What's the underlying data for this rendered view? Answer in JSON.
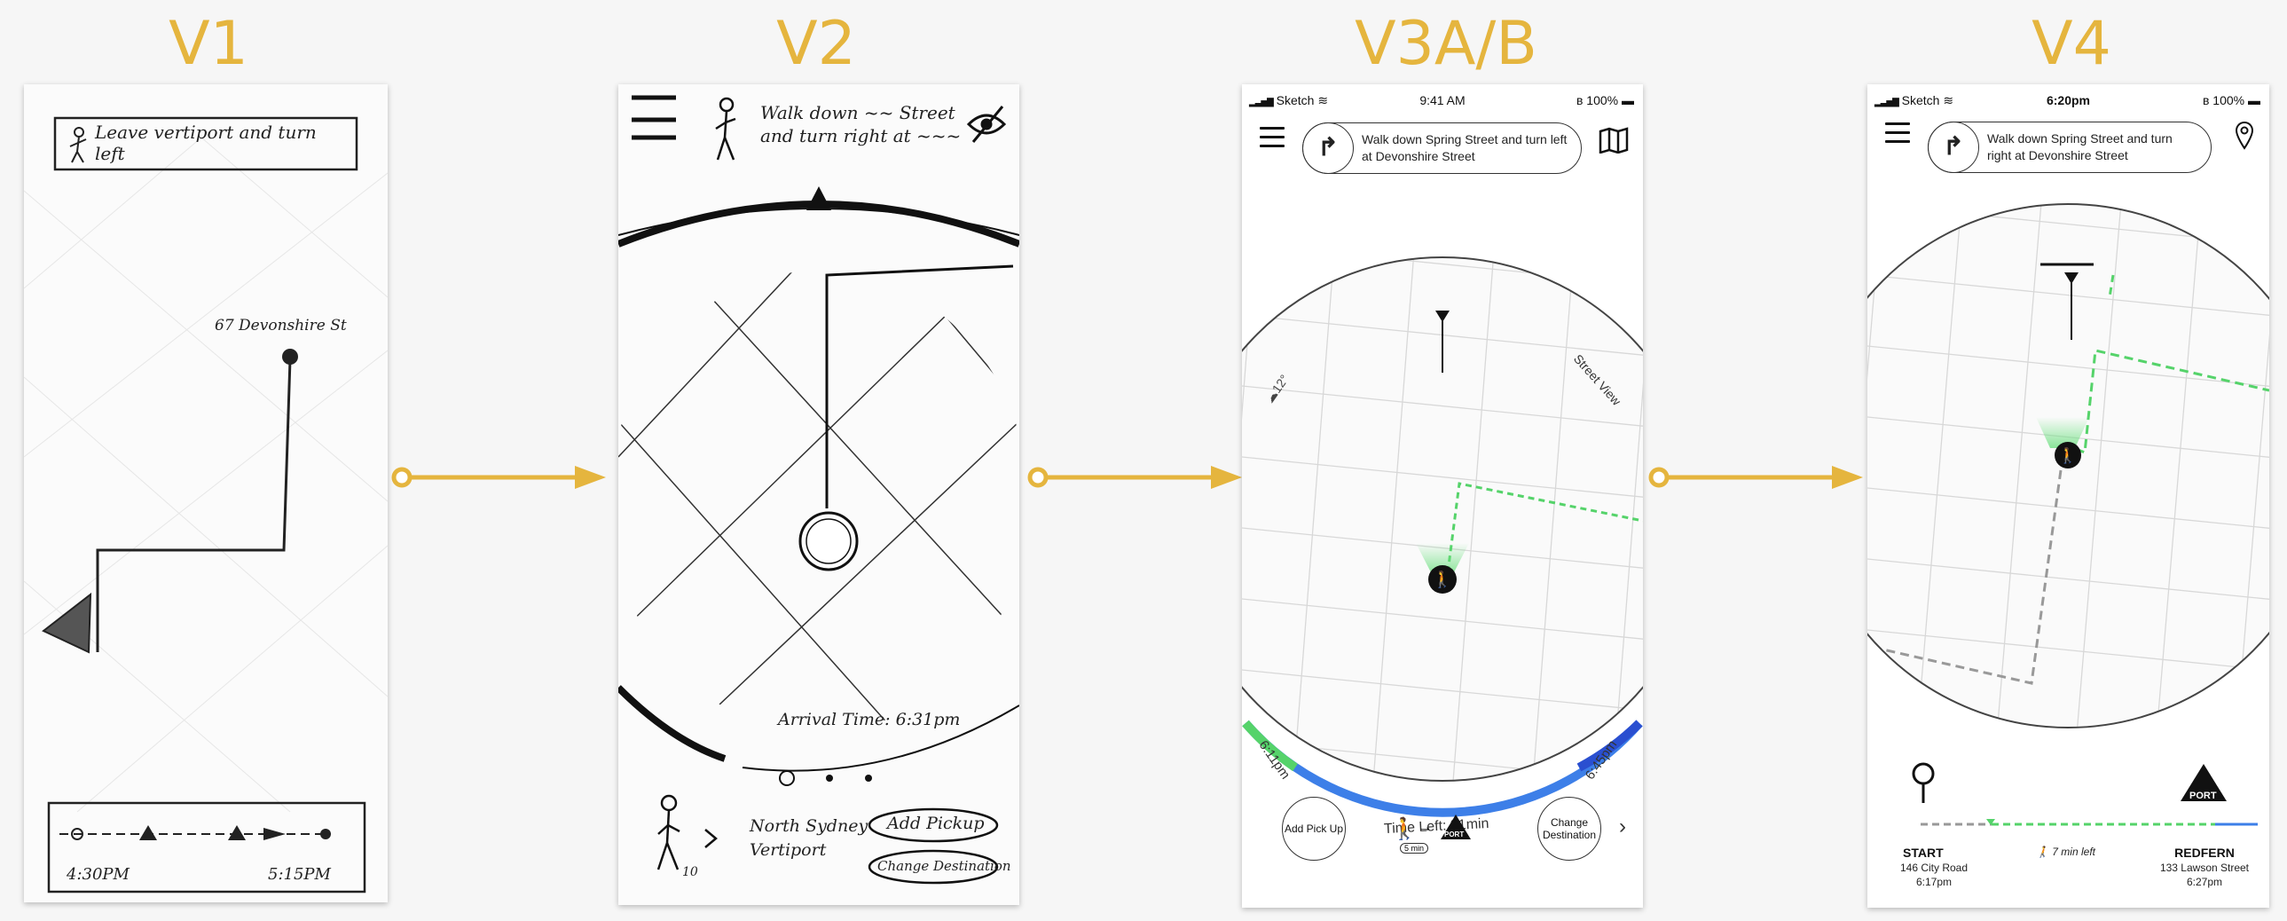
{
  "labels": {
    "v1": "V1",
    "v2": "V2",
    "v3": "V3A/B",
    "v4": "V4"
  },
  "colors": {
    "accent": "#e5b53e",
    "route_green": "#55d36a",
    "progress_blue": "#3d7fe8",
    "route_gray": "#999999"
  },
  "v1": {
    "instruction": "Leave vertiport and turn left",
    "destination": "67 Devonshire St",
    "start_time": "4:30PM",
    "end_time": "5:15PM"
  },
  "v2": {
    "instruction_line1": "Walk down ~~ Street",
    "instruction_line2": "and turn right at ~~~",
    "arrival": "Arrival Time: 6:31pm",
    "walker_number": "10",
    "location_line1": "North Sydney",
    "location_line2": "Vertiport",
    "add_pickup": "Add Pickup",
    "change_destination": "Change Destination"
  },
  "v3": {
    "carrier": "Sketch",
    "time": "9:41 AM",
    "battery": "100%",
    "instruction": "Walk down Spring Street and turn left at Devonshire Street",
    "temperature": "12°",
    "street_view": "Street View",
    "time_start": "6:11pm",
    "time_end": "6:45pm",
    "time_left": "Time Left: 31min",
    "add_pickup": "Add Pick Up",
    "change_destination": "Change Destination",
    "walk_minutes": "5 min",
    "port_label": "PORT"
  },
  "v4": {
    "carrier": "Sketch",
    "time": "6:20pm",
    "battery": "100%",
    "instruction": "Walk down Spring Street and turn right at Devonshire Street",
    "start_label": "START",
    "start_address": "146 City Road",
    "start_time": "6:17pm",
    "minutes_left": "7 min left",
    "end_label": "REDFERN",
    "end_address": "133 Lawson Street",
    "end_time": "6:27pm",
    "port_label": "PORT"
  },
  "icons": {
    "arrow": "arrow-right-icon",
    "walker": "pedestrian-icon",
    "map": "map-icon",
    "eye": "eye-slash-icon",
    "turn": "turn-right-icon"
  }
}
